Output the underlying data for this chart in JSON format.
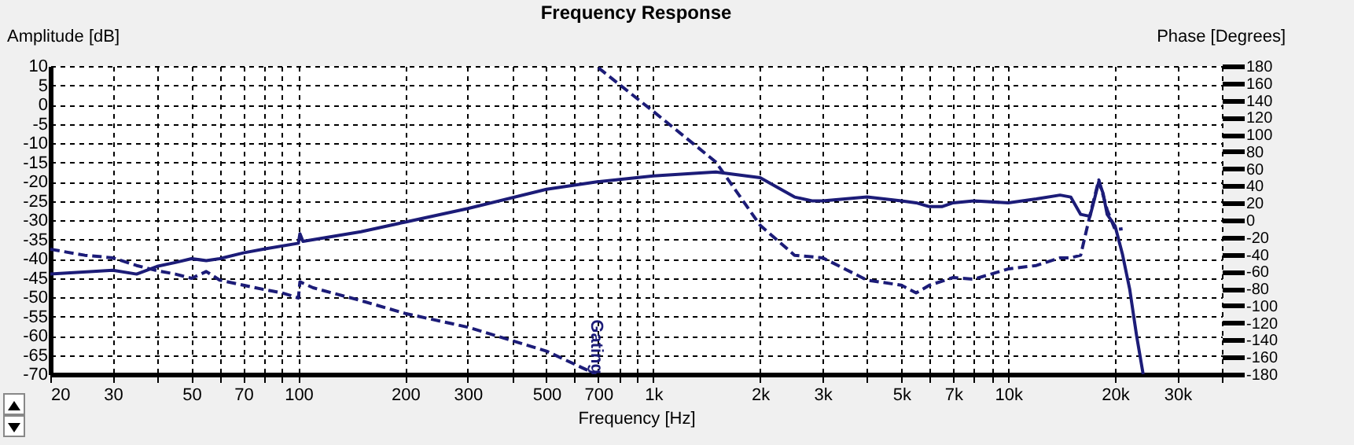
{
  "chart_data": {
    "type": "line",
    "title": "Frequency Response",
    "xlabel": "Frequency [Hz]",
    "ylabel": "Amplitude [dB]",
    "y2label": "Phase [Degrees]",
    "log": "x",
    "grid": true,
    "xlim": [
      20,
      40000
    ],
    "xticks": [
      {
        "value": 20,
        "label": "20"
      },
      {
        "value": 30,
        "label": "30"
      },
      {
        "value": 40,
        "label": null
      },
      {
        "value": 50,
        "label": "50"
      },
      {
        "value": 60,
        "label": null
      },
      {
        "value": 70,
        "label": "70"
      },
      {
        "value": 80,
        "label": null
      },
      {
        "value": 90,
        "label": null
      },
      {
        "value": 100,
        "label": "100"
      },
      {
        "value": 200,
        "label": "200"
      },
      {
        "value": 300,
        "label": "300"
      },
      {
        "value": 400,
        "label": null
      },
      {
        "value": 500,
        "label": "500"
      },
      {
        "value": 600,
        "label": null
      },
      {
        "value": 700,
        "label": "700"
      },
      {
        "value": 800,
        "label": null
      },
      {
        "value": 900,
        "label": null
      },
      {
        "value": 1000,
        "label": "1k"
      },
      {
        "value": 2000,
        "label": "2k"
      },
      {
        "value": 3000,
        "label": "3k"
      },
      {
        "value": 4000,
        "label": null
      },
      {
        "value": 5000,
        "label": "5k"
      },
      {
        "value": 6000,
        "label": null
      },
      {
        "value": 7000,
        "label": "7k"
      },
      {
        "value": 8000,
        "label": null
      },
      {
        "value": 9000,
        "label": null
      },
      {
        "value": 10000,
        "label": "10k"
      },
      {
        "value": 20000,
        "label": "20k"
      },
      {
        "value": 30000,
        "label": "30k"
      },
      {
        "value": 40000,
        "label": null
      }
    ],
    "ylim": [
      -70,
      10
    ],
    "yticks": [
      -70,
      -65,
      -60,
      -55,
      -50,
      -45,
      -40,
      -35,
      -30,
      -25,
      -20,
      -15,
      -10,
      -5,
      0,
      5,
      10
    ],
    "y2lim": [
      -180,
      180
    ],
    "y2ticks": [
      -180,
      -160,
      -140,
      -120,
      -100,
      -80,
      -60,
      -40,
      -20,
      0,
      20,
      40,
      60,
      80,
      100,
      120,
      140,
      160,
      180
    ],
    "series": [
      {
        "color": "#1c1c78",
        "line_style": "solid",
        "x": [
          20,
          30,
          35,
          40,
          45,
          50,
          55,
          60,
          70,
          80,
          100,
          101,
          103,
          150,
          200,
          300,
          500,
          700,
          1000,
          1500,
          2000,
          2500,
          2800,
          3000,
          4000,
          5000,
          5500,
          6000,
          6500,
          7000,
          8000,
          10000,
          12000,
          14000,
          15000,
          16000,
          17000,
          17500,
          18000,
          18500,
          19000,
          20000,
          21000,
          22000,
          23000,
          24000
        ],
        "values": [
          -44,
          -43,
          -44,
          -42,
          -41,
          -40,
          -40.5,
          -40,
          -38.5,
          -37.5,
          -36,
          -33.5,
          -35.5,
          -33,
          -30.5,
          -27,
          -22,
          -20,
          -18.5,
          -17.5,
          -19,
          -24,
          -25,
          -25,
          -24,
          -25,
          -25.5,
          -26.5,
          -26.5,
          -25.5,
          -25,
          -25.5,
          -24.5,
          -23.5,
          -24,
          -28.5,
          -29,
          -24.5,
          -20,
          -23,
          -28.5,
          -31.5,
          -39,
          -48,
          -60,
          -70
        ]
      },
      {
        "color": "#1c1c78",
        "line_style": "dashed",
        "axis": "y2",
        "x": [
          20,
          25,
          30,
          35,
          40,
          45,
          50,
          55,
          60,
          70,
          80,
          90,
          100,
          101,
          110,
          150,
          200,
          300,
          500,
          690,
          695,
          700,
          1000,
          1500,
          2000,
          2500,
          3000,
          4000,
          5000,
          5500,
          6000,
          7000,
          8000,
          10000,
          12000,
          14000,
          15000,
          16000,
          17000,
          18000,
          19000,
          20000,
          21000
        ],
        "values": [
          -34,
          -41,
          -44,
          -53,
          -59,
          -63,
          -68,
          -60,
          -70,
          -76,
          -81,
          -85,
          -91,
          -72,
          -79,
          -94,
          -109,
          -125,
          -153,
          -180,
          null,
          178,
          127,
          68,
          -6,
          -41,
          -44,
          -70,
          -76,
          -85,
          -76,
          -67,
          -69,
          -57,
          -53,
          -44,
          -44,
          -41,
          6,
          47,
          12,
          -11,
          -10
        ]
      }
    ],
    "annotations": [
      {
        "text": "Gating",
        "x": 690,
        "y": -70
      }
    ]
  }
}
